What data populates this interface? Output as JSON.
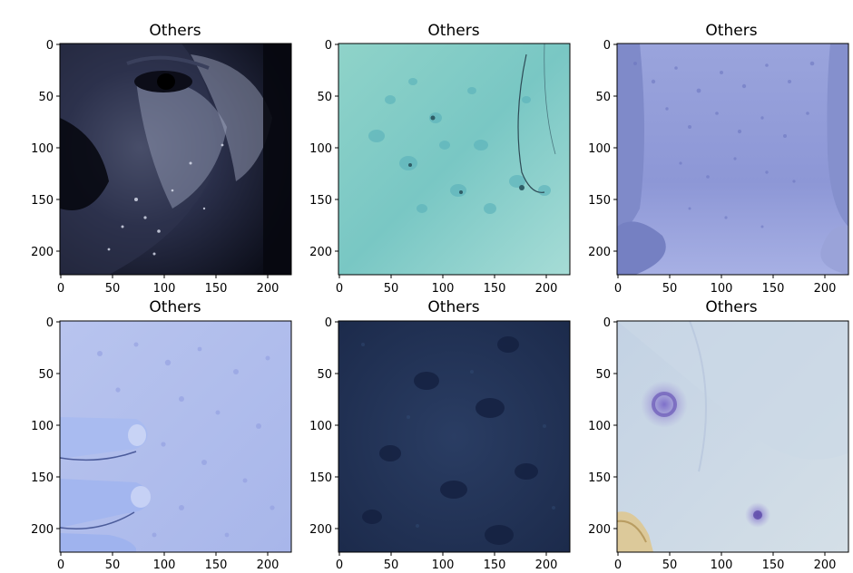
{
  "figure": {
    "rows": 2,
    "cols": 3,
    "panels": [
      {
        "title": "Others",
        "theme": "dark-face",
        "xticks": [
          "0",
          "50",
          "100",
          "150",
          "200"
        ],
        "yticks": [
          "0",
          "50",
          "100",
          "150",
          "200"
        ]
      },
      {
        "title": "Others",
        "theme": "teal-skin-bumps",
        "xticks": [
          "0",
          "50",
          "100",
          "150",
          "200"
        ],
        "yticks": [
          "0",
          "50",
          "100",
          "150",
          "200"
        ]
      },
      {
        "title": "Others",
        "theme": "blue-torso-rash",
        "xticks": [
          "0",
          "50",
          "100",
          "150",
          "200"
        ],
        "yticks": [
          "0",
          "50",
          "100",
          "150",
          "200"
        ]
      },
      {
        "title": "Others",
        "theme": "pale-blue-skin-fingers",
        "xticks": [
          "0",
          "50",
          "100",
          "150",
          "200"
        ],
        "yticks": [
          "0",
          "50",
          "100",
          "150",
          "200"
        ]
      },
      {
        "title": "Others",
        "theme": "dark-navy-texture",
        "xticks": [
          "0",
          "50",
          "100",
          "150",
          "200"
        ],
        "yticks": [
          "0",
          "50",
          "100",
          "150",
          "200"
        ]
      },
      {
        "title": "Others",
        "theme": "pale-skin-purple-spots",
        "xticks": [
          "0",
          "50",
          "100",
          "150",
          "200"
        ],
        "yticks": [
          "0",
          "50",
          "100",
          "150",
          "200"
        ]
      }
    ]
  }
}
